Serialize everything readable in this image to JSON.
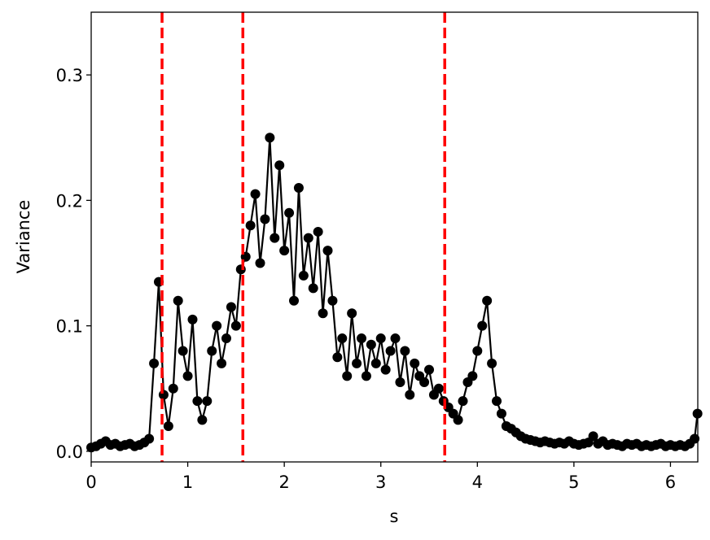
{
  "chart_data": {
    "type": "line",
    "x_label": "s",
    "y_label": "Variance",
    "xlim": [
      0,
      6.283
    ],
    "ylim": [
      -0.0085,
      0.35
    ],
    "xticks": [
      0,
      1,
      2,
      3,
      4,
      5,
      6
    ],
    "yticks": [
      {
        "value": 0,
        "label": "0.0"
      },
      0.1,
      0.2,
      0.3
    ],
    "vlines": [
      0.734,
      1.571,
      3.662
    ],
    "vline_color": "#ff0000",
    "series": [
      {
        "color": "#000000",
        "x": [
          0,
          0.05,
          0.1,
          0.15,
          0.2,
          0.25,
          0.3,
          0.35,
          0.4,
          0.45,
          0.5,
          0.55,
          0.6,
          0.65,
          0.7,
          0.75,
          0.8,
          0.85,
          0.9,
          0.95,
          1.0,
          1.05,
          1.1,
          1.15,
          1.2,
          1.25,
          1.3,
          1.35,
          1.4,
          1.45,
          1.5,
          1.55,
          1.6,
          1.65,
          1.7,
          1.75,
          1.8,
          1.85,
          1.9,
          1.95,
          2.0,
          2.05,
          2.1,
          2.15,
          2.2,
          2.25,
          2.3,
          2.35,
          2.4,
          2.45,
          2.5,
          2.55,
          2.6,
          2.65,
          2.7,
          2.75,
          2.8,
          2.85,
          2.9,
          2.95,
          3.0,
          3.05,
          3.1,
          3.15,
          3.2,
          3.25,
          3.3,
          3.35,
          3.4,
          3.45,
          3.5,
          3.55,
          3.6,
          3.65,
          3.7,
          3.75,
          3.8,
          3.85,
          3.9,
          3.95,
          4.0,
          4.05,
          4.1,
          4.15,
          4.2,
          4.25,
          4.3,
          4.35,
          4.4,
          4.45,
          4.5,
          4.55,
          4.6,
          4.65,
          4.7,
          4.75,
          4.8,
          4.85,
          4.9,
          4.95,
          5.0,
          5.05,
          5.1,
          5.15,
          5.2,
          5.25,
          5.3,
          5.35,
          5.4,
          5.45,
          5.5,
          5.55,
          5.6,
          5.65,
          5.7,
          5.75,
          5.8,
          5.85,
          5.9,
          5.95,
          6.0,
          6.05,
          6.1,
          6.15,
          6.2,
          6.25,
          6.28
        ],
        "values": [
          0.003,
          0.004,
          0.006,
          0.008,
          0.005,
          0.006,
          0.004,
          0.005,
          0.006,
          0.004,
          0.005,
          0.007,
          0.01,
          0.07,
          0.135,
          0.045,
          0.02,
          0.05,
          0.12,
          0.08,
          0.06,
          0.105,
          0.04,
          0.025,
          0.04,
          0.08,
          0.1,
          0.07,
          0.09,
          0.115,
          0.1,
          0.145,
          0.155,
          0.18,
          0.205,
          0.15,
          0.185,
          0.25,
          0.17,
          0.228,
          0.16,
          0.19,
          0.12,
          0.21,
          0.14,
          0.17,
          0.13,
          0.175,
          0.11,
          0.16,
          0.12,
          0.075,
          0.09,
          0.06,
          0.11,
          0.07,
          0.09,
          0.06,
          0.085,
          0.07,
          0.09,
          0.065,
          0.08,
          0.09,
          0.055,
          0.08,
          0.045,
          0.07,
          0.06,
          0.055,
          0.065,
          0.045,
          0.05,
          0.04,
          0.035,
          0.03,
          0.025,
          0.04,
          0.055,
          0.06,
          0.08,
          0.1,
          0.12,
          0.07,
          0.04,
          0.03,
          0.02,
          0.018,
          0.015,
          0.012,
          0.01,
          0.009,
          0.008,
          0.007,
          0.008,
          0.007,
          0.006,
          0.007,
          0.006,
          0.008,
          0.006,
          0.005,
          0.006,
          0.007,
          0.012,
          0.006,
          0.008,
          0.005,
          0.006,
          0.005,
          0.004,
          0.006,
          0.005,
          0.006,
          0.004,
          0.005,
          0.004,
          0.005,
          0.006,
          0.004,
          0.005,
          0.004,
          0.005,
          0.004,
          0.006,
          0.01,
          0.03
        ]
      }
    ]
  }
}
